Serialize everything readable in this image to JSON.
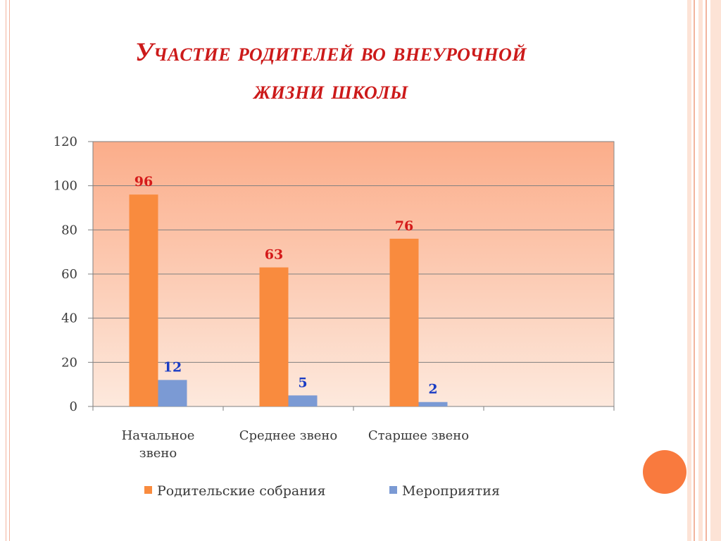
{
  "slide": {
    "title_line1": "Участие родителей во внеурочной",
    "title_line2": "жизни школы"
  },
  "colors": {
    "title": "#cc1a1a",
    "series_1": "#f98b3e",
    "series_2": "#7b9ad4",
    "label_1": "#d41a1a",
    "label_2": "#1a3cc4",
    "plot_bg_top": "#fbad8a",
    "plot_bg_bottom": "#fde9dd",
    "accent_circle": "#f97a3e"
  },
  "chart_data": {
    "type": "bar",
    "categories": [
      "Начальное звено",
      "Среднее звено",
      "Старшее звено",
      ""
    ],
    "category_lines": [
      [
        "Начальное",
        "звено"
      ],
      [
        "Среднее звено"
      ],
      [
        "Старшее звено"
      ],
      [
        ""
      ]
    ],
    "series": [
      {
        "name": "Родительские собрания",
        "values": [
          96,
          63,
          76,
          null
        ]
      },
      {
        "name": "Мероприятия",
        "values": [
          12,
          5,
          2,
          null
        ]
      }
    ],
    "title": "Участие родителей во внеурочной жизни школы",
    "xlabel": "",
    "ylabel": "",
    "ylim": [
      0,
      120
    ],
    "yticks": [
      0,
      20,
      40,
      60,
      80,
      100,
      120
    ],
    "grid": true,
    "legend": "bottom",
    "data_labels": true
  }
}
